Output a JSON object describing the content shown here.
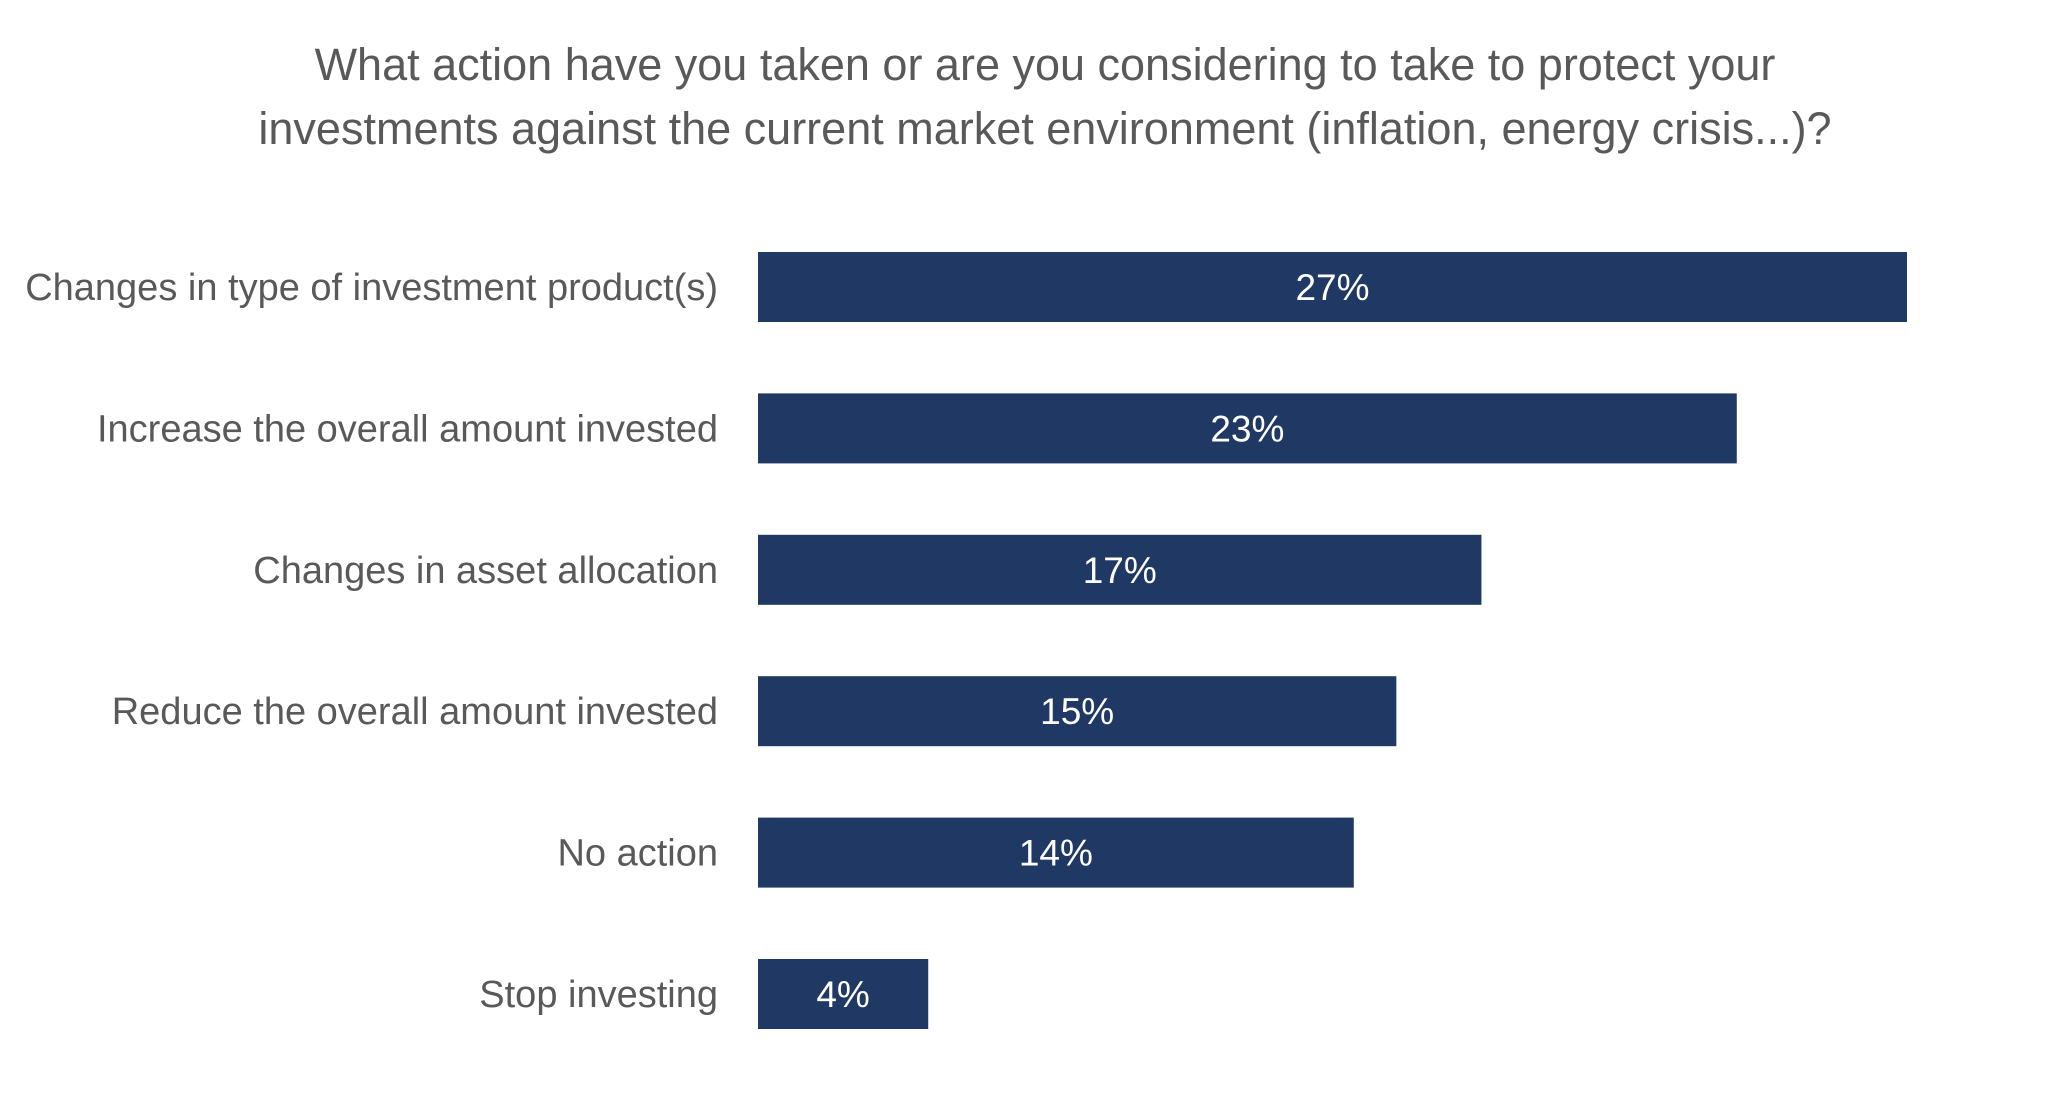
{
  "chart_data": {
    "type": "bar",
    "orientation": "horizontal",
    "title_lines": [
      "What action have you taken or are you considering to take to protect your",
      "investments against the current market environment (inflation, energy crisis...)?"
    ],
    "categories": [
      "Changes in type of investment product(s)",
      "Increase the overall amount invested",
      "Changes in asset allocation",
      "Reduce the overall amount invested",
      "No action",
      "Stop investing"
    ],
    "values": [
      27,
      23,
      17,
      15,
      14,
      4
    ],
    "value_labels": [
      "27%",
      "23%",
      "17%",
      "15%",
      "14%",
      "4%"
    ],
    "unit": "%",
    "xlim": [
      0,
      27
    ],
    "grid": false,
    "legend": "none",
    "bar_color": "#203864",
    "label_color": "#ffffff",
    "text_color": "#595959",
    "background": "#ffffff"
  }
}
